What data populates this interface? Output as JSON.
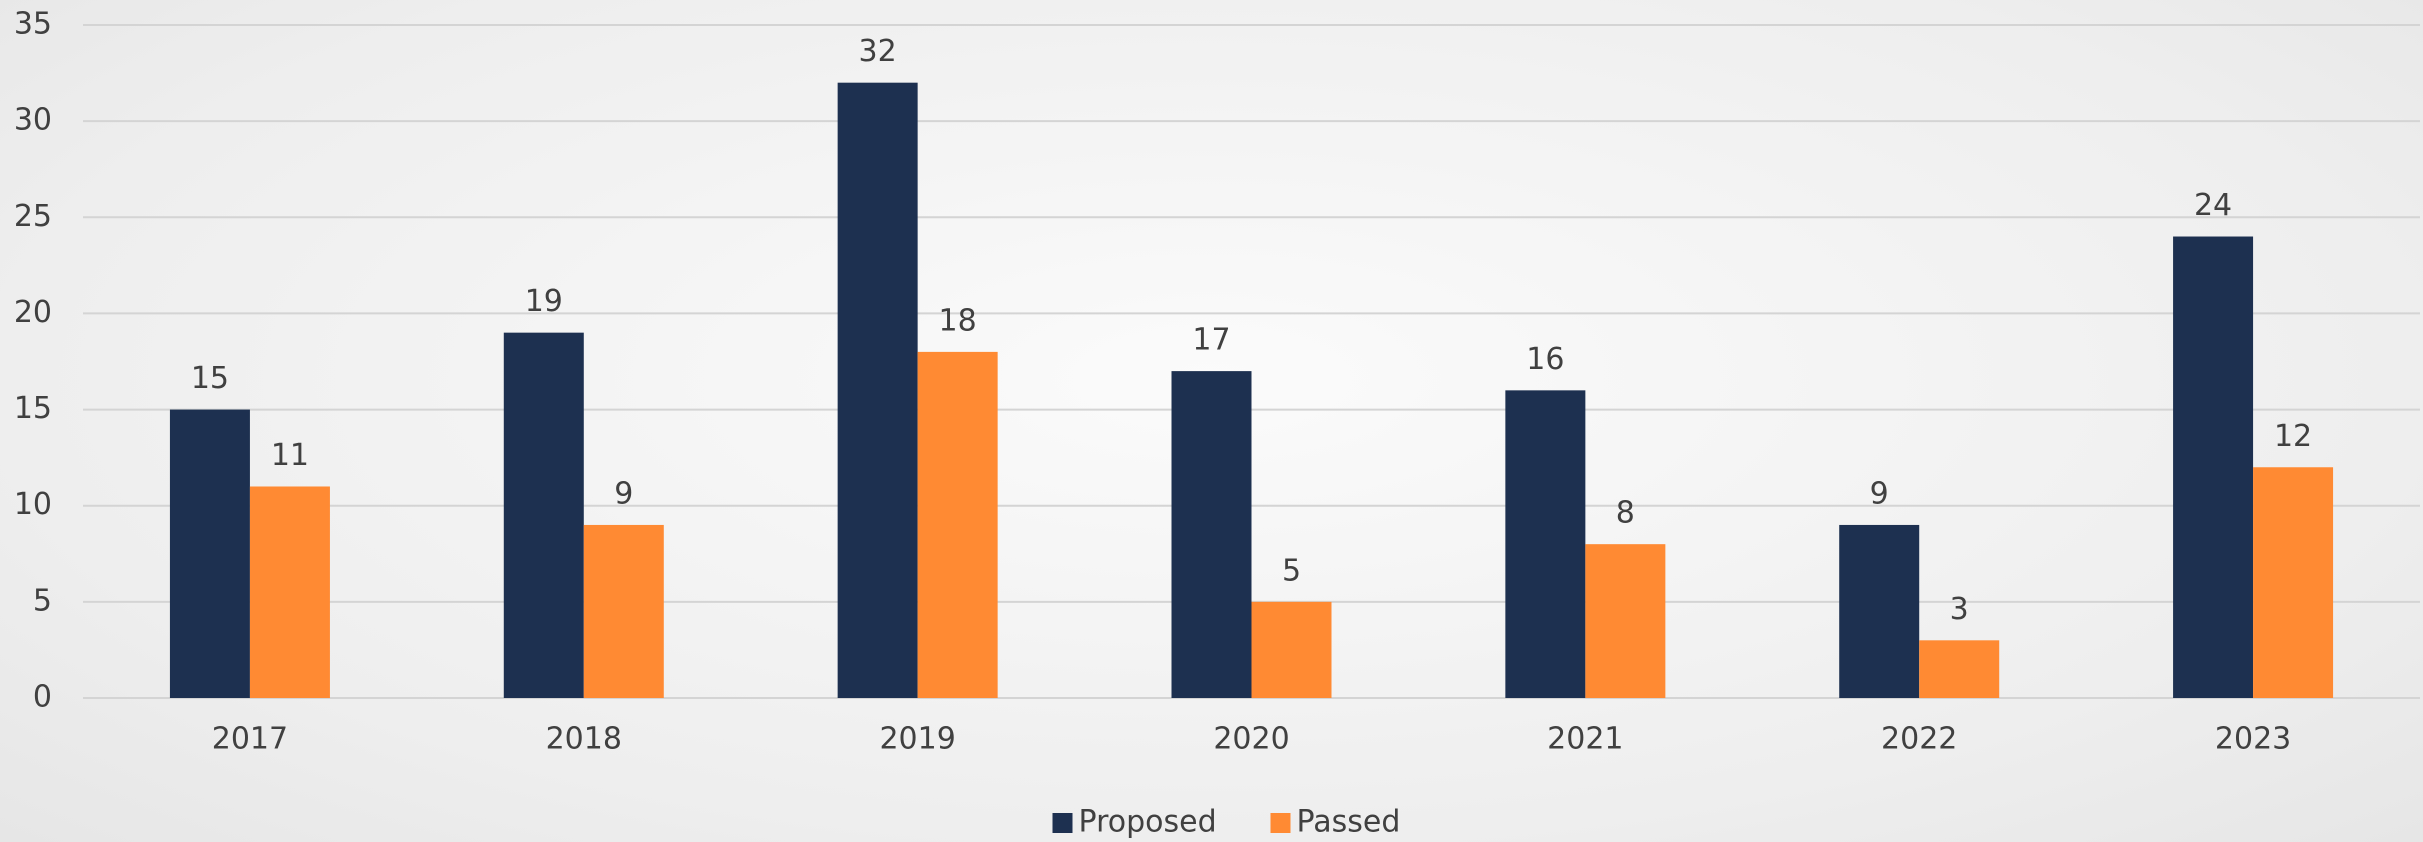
{
  "chart_data": {
    "type": "bar",
    "categories": [
      "2017",
      "2018",
      "2019",
      "2020",
      "2021",
      "2022",
      "2023"
    ],
    "series": [
      {
        "name": "Proposed",
        "color": "#1d3050",
        "values": [
          15,
          19,
          32,
          17,
          16,
          9,
          24
        ]
      },
      {
        "name": "Passed",
        "color": "#ff8a33",
        "values": [
          11,
          9,
          18,
          5,
          8,
          3,
          12
        ]
      }
    ],
    "ylim": [
      0,
      35
    ],
    "yticks": [
      0,
      5,
      10,
      15,
      20,
      25,
      30,
      35
    ],
    "grid": true,
    "legend": "bottom"
  }
}
